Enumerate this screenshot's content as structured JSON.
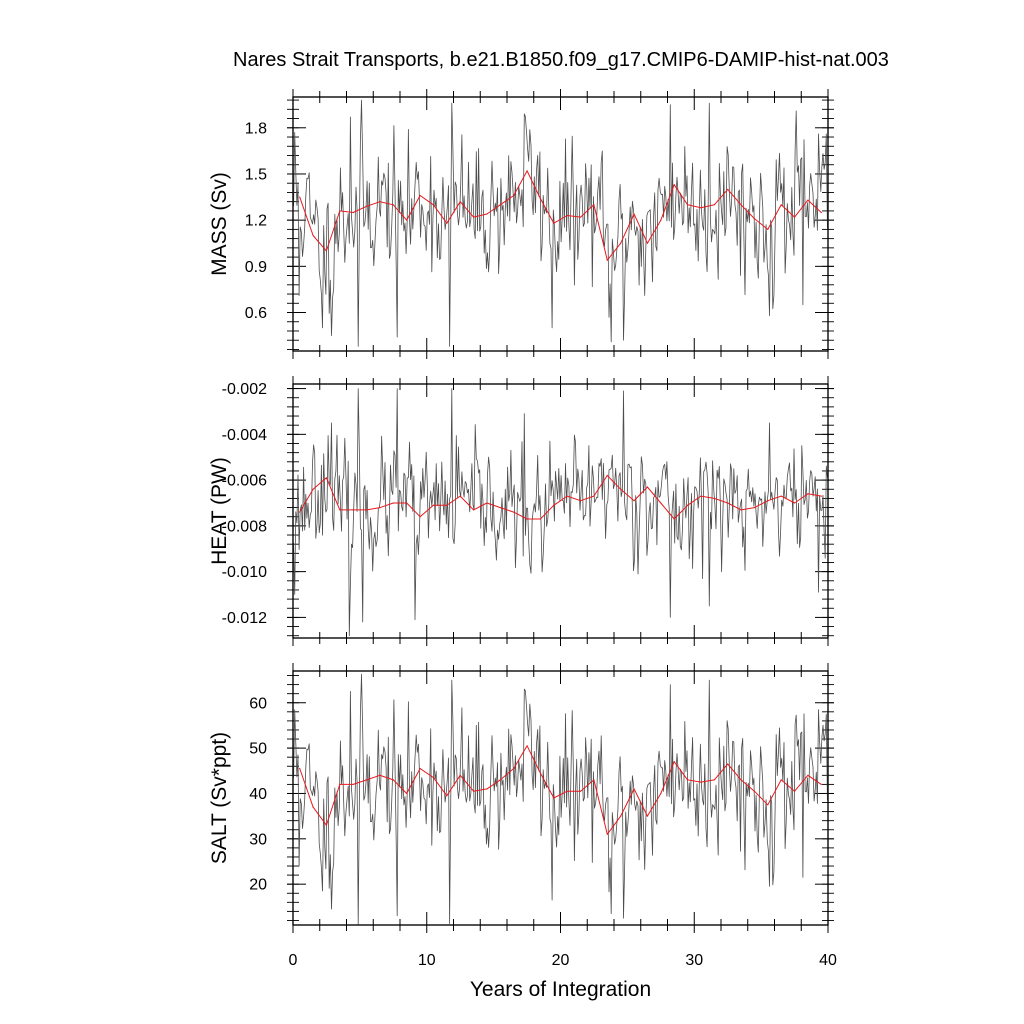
{
  "title": "Nares Strait Transports, b.e21.B1850.f09_g17.CMIP6-DAMIP-hist-nat.003",
  "colors": {
    "raw": "#4d4d4d",
    "smooth": "#e8191d",
    "axis": "#000000",
    "background": "#ffffff"
  },
  "chart_data": [
    {
      "type": "line",
      "panel": "MASS",
      "ylabel": "MASS (Sv)",
      "xlabel": "",
      "xlim": [
        0,
        40
      ],
      "ylim": [
        0.35,
        2.0
      ],
      "x_ticks": [
        0,
        10,
        20,
        30,
        40
      ],
      "x_tick_labels": [
        "",
        "",
        "",
        "",
        ""
      ],
      "y_ticks": [
        0.6,
        0.9,
        1.2,
        1.5,
        1.8
      ],
      "y_tick_labels": [
        "0.6",
        "0.9",
        "1.2",
        "1.5",
        "1.8"
      ],
      "grid": false,
      "raw_start": 0.0417,
      "raw_step": 0.0833333,
      "raw_seed": 11,
      "raw_mean": 1.27,
      "raw_sd": 0.21,
      "raw_min": 0.38,
      "raw_max": 1.98,
      "raw_extremes": [
        {
          "x": 0.1,
          "y": 1.77
        },
        {
          "x": 0.5,
          "y": 0.71
        },
        {
          "x": 2.2,
          "y": 0.5
        },
        {
          "x": 2.9,
          "y": 0.45
        },
        {
          "x": 4.3,
          "y": 1.87
        },
        {
          "x": 4.9,
          "y": 0.38
        },
        {
          "x": 5.1,
          "y": 1.98
        },
        {
          "x": 7.8,
          "y": 0.44
        },
        {
          "x": 11.7,
          "y": 0.38
        },
        {
          "x": 11.9,
          "y": 1.96
        },
        {
          "x": 17.3,
          "y": 1.89
        },
        {
          "x": 19.4,
          "y": 0.5
        },
        {
          "x": 23.1,
          "y": 1.65
        },
        {
          "x": 23.8,
          "y": 0.41
        },
        {
          "x": 24.7,
          "y": 0.42
        },
        {
          "x": 28.2,
          "y": 1.95
        },
        {
          "x": 31.1,
          "y": 1.96
        },
        {
          "x": 35.6,
          "y": 0.58
        },
        {
          "x": 37.6,
          "y": 1.91
        },
        {
          "x": 38.1,
          "y": 0.65
        },
        {
          "x": 39.3,
          "y": 1.76
        },
        {
          "x": 39.9,
          "y": 1.76
        }
      ],
      "series": [
        {
          "x": [
            0.5,
            1.5,
            2.5,
            3.5,
            4.5,
            5.5,
            6.5,
            7.5,
            8.5,
            9.5,
            10.5,
            11.5,
            12.5,
            13.5,
            14.5,
            15.5,
            16.5,
            17.5,
            18.5,
            19.5,
            20.5,
            21.5,
            22.5,
            23.5,
            24.5,
            25.5,
            26.5,
            27.5,
            28.5,
            29.5,
            30.5,
            31.5,
            32.5,
            33.5,
            34.5,
            35.5,
            36.5,
            37.5,
            38.5,
            39.5
          ],
          "y": [
            1.35,
            1.1,
            1.0,
            1.26,
            1.25,
            1.29,
            1.32,
            1.3,
            1.2,
            1.36,
            1.3,
            1.18,
            1.32,
            1.22,
            1.24,
            1.3,
            1.36,
            1.52,
            1.34,
            1.18,
            1.23,
            1.22,
            1.3,
            0.94,
            1.05,
            1.24,
            1.05,
            1.2,
            1.43,
            1.3,
            1.28,
            1.3,
            1.4,
            1.3,
            1.21,
            1.14,
            1.3,
            1.22,
            1.33,
            1.25
          ]
        }
      ]
    },
    {
      "type": "line",
      "panel": "HEAT",
      "ylabel": "HEAT (PW)",
      "xlabel": "",
      "xlim": [
        0,
        40
      ],
      "ylim": [
        -0.0129,
        -0.0018
      ],
      "x_ticks": [
        0,
        10,
        20,
        30,
        40
      ],
      "x_tick_labels": [
        "",
        "",
        "",
        "",
        ""
      ],
      "y_ticks": [
        -0.012,
        -0.01,
        -0.008,
        -0.006,
        -0.004,
        -0.002
      ],
      "y_tick_labels": [
        "-0.012",
        "-0.010",
        "-0.008",
        "-0.006",
        "-0.004",
        "-0.002"
      ],
      "grid": false,
      "raw_start": 0.0417,
      "raw_step": 0.0833333,
      "raw_seed": 23,
      "raw_mean": -0.00695,
      "raw_sd": 0.0012,
      "raw_min": -0.0128,
      "raw_max": -0.0019,
      "raw_extremes": [
        {
          "x": 0.1,
          "y": -0.011
        },
        {
          "x": 2.9,
          "y": -0.0035
        },
        {
          "x": 4.2,
          "y": -0.0128
        },
        {
          "x": 4.9,
          "y": -0.002
        },
        {
          "x": 5.2,
          "y": -0.0122
        },
        {
          "x": 7.8,
          "y": -0.002
        },
        {
          "x": 9.1,
          "y": -0.0121
        },
        {
          "x": 11.9,
          "y": -0.002
        },
        {
          "x": 17.3,
          "y": -0.0031
        },
        {
          "x": 24.7,
          "y": -0.0021
        },
        {
          "x": 28.2,
          "y": -0.012
        },
        {
          "x": 31.1,
          "y": -0.0115
        },
        {
          "x": 35.6,
          "y": -0.0035
        },
        {
          "x": 39.3,
          "y": -0.0109
        }
      ],
      "series": [
        {
          "x": [
            0.5,
            1.5,
            2.5,
            3.5,
            4.5,
            5.5,
            6.5,
            7.5,
            8.5,
            9.5,
            10.5,
            11.5,
            12.5,
            13.5,
            14.5,
            15.5,
            16.5,
            17.5,
            18.5,
            19.5,
            20.5,
            21.5,
            22.5,
            23.5,
            24.5,
            25.5,
            26.5,
            27.5,
            28.5,
            29.5,
            30.5,
            31.5,
            32.5,
            33.5,
            34.5,
            35.5,
            36.5,
            37.5,
            38.5,
            39.5
          ],
          "y": [
            -0.0074,
            -0.0064,
            -0.0059,
            -0.0073,
            -0.0073,
            -0.0073,
            -0.0072,
            -0.007,
            -0.007,
            -0.0076,
            -0.0071,
            -0.0071,
            -0.0067,
            -0.0073,
            -0.007,
            -0.0072,
            -0.0074,
            -0.0077,
            -0.0077,
            -0.0071,
            -0.0067,
            -0.0069,
            -0.0067,
            -0.0058,
            -0.0064,
            -0.0069,
            -0.0063,
            -0.007,
            -0.0077,
            -0.0071,
            -0.0067,
            -0.0068,
            -0.007,
            -0.0073,
            -0.0072,
            -0.0069,
            -0.0067,
            -0.007,
            -0.0066,
            -0.0067
          ]
        }
      ]
    },
    {
      "type": "line",
      "panel": "SALT",
      "ylabel": "SALT (Sv*ppt)",
      "xlabel": "Years of Integration",
      "xlim": [
        0,
        40
      ],
      "ylim": [
        11,
        67
      ],
      "x_ticks": [
        0,
        10,
        20,
        30,
        40
      ],
      "x_tick_labels": [
        "0",
        "10",
        "20",
        "30",
        "40"
      ],
      "y_ticks": [
        20,
        30,
        40,
        50,
        60
      ],
      "y_tick_labels": [
        "20",
        "30",
        "40",
        "50",
        "60"
      ],
      "grid": false,
      "raw_start": 0.0417,
      "raw_step": 0.0833333,
      "raw_seed": 11,
      "raw_mean": 41.8,
      "raw_sd": 7.2,
      "raw_min": 11.2,
      "raw_max": 66.3,
      "raw_extremes": [
        {
          "x": 0.1,
          "y": 58.5
        },
        {
          "x": 0.5,
          "y": 24.0
        },
        {
          "x": 2.2,
          "y": 18.5
        },
        {
          "x": 2.9,
          "y": 14.5
        },
        {
          "x": 4.3,
          "y": 62.5
        },
        {
          "x": 4.9,
          "y": 11.2
        },
        {
          "x": 5.1,
          "y": 66.3
        },
        {
          "x": 7.8,
          "y": 13.0
        },
        {
          "x": 11.7,
          "y": 11.3
        },
        {
          "x": 11.9,
          "y": 65.0
        },
        {
          "x": 17.3,
          "y": 63.0
        },
        {
          "x": 19.4,
          "y": 16.5
        },
        {
          "x": 23.8,
          "y": 13.5
        },
        {
          "x": 24.7,
          "y": 12.5
        },
        {
          "x": 28.2,
          "y": 64.0
        },
        {
          "x": 31.1,
          "y": 65.0
        },
        {
          "x": 35.6,
          "y": 19.5
        },
        {
          "x": 38.1,
          "y": 21.5
        },
        {
          "x": 39.3,
          "y": 58.5
        },
        {
          "x": 39.9,
          "y": 57.5
        }
      ],
      "series": [
        {
          "x": [
            0.5,
            1.5,
            2.5,
            3.5,
            4.5,
            5.5,
            6.5,
            7.5,
            8.5,
            9.5,
            10.5,
            11.5,
            12.5,
            13.5,
            14.5,
            15.5,
            16.5,
            17.5,
            18.5,
            19.5,
            20.5,
            21.5,
            22.5,
            23.5,
            24.5,
            25.5,
            26.5,
            27.5,
            28.5,
            29.5,
            30.5,
            31.5,
            32.5,
            33.5,
            34.5,
            35.5,
            36.5,
            37.5,
            38.5,
            39.5
          ],
          "y": [
            45.5,
            37.0,
            33.0,
            42.0,
            42.0,
            43.0,
            44.0,
            43.0,
            40.0,
            45.5,
            43.5,
            39.5,
            44.0,
            40.5,
            41.0,
            43.0,
            45.5,
            50.5,
            44.5,
            39.0,
            40.5,
            40.5,
            43.0,
            31.0,
            35.0,
            41.0,
            35.0,
            40.0,
            47.0,
            43.0,
            42.5,
            43.0,
            46.5,
            43.0,
            40.5,
            37.5,
            43.0,
            40.5,
            44.0,
            42.0
          ]
        }
      ]
    }
  ]
}
